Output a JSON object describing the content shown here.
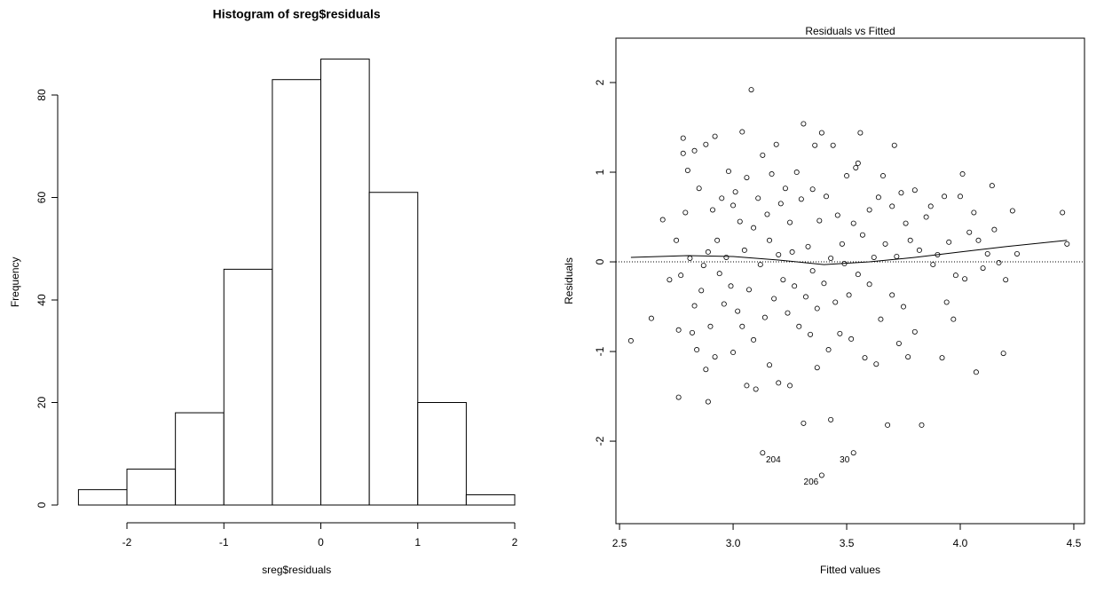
{
  "chart_data": [
    {
      "type": "histogram",
      "title": "Histogram of sreg$residuals",
      "xlabel": "sreg$residuals",
      "ylabel": "Frequency",
      "bins": [
        -2.5,
        -2,
        -1.5,
        -1,
        -0.5,
        0,
        0.5,
        1,
        1.5,
        2
      ],
      "values": [
        3,
        7,
        18,
        46,
        83,
        87,
        61,
        20,
        2
      ],
      "color": "#ffffff",
      "xlim": [
        -2.5,
        2
      ],
      "xticks": [
        -2,
        -1,
        0,
        1,
        2
      ],
      "ylim": [
        0,
        87
      ],
      "yticks": [
        0,
        20,
        40,
        60,
        80
      ]
    },
    {
      "type": "scatter",
      "title": "Residuals vs Fitted",
      "xlabel": "Fitted values",
      "ylabel": "Residuals",
      "x": [
        2.55,
        2.64,
        2.69,
        2.72,
        2.75,
        2.76,
        2.76,
        2.77,
        2.78,
        2.78,
        2.79,
        2.8,
        2.81,
        2.82,
        2.83,
        2.83,
        2.84,
        2.85,
        2.86,
        2.87,
        2.88,
        2.88,
        2.89,
        2.89,
        2.9,
        2.91,
        2.92,
        2.92,
        2.93,
        2.94,
        2.95,
        2.96,
        2.97,
        2.98,
        2.99,
        3.0,
        3.0,
        3.01,
        3.02,
        3.03,
        3.04,
        3.04,
        3.05,
        3.06,
        3.06,
        3.07,
        3.08,
        3.09,
        3.09,
        3.1,
        3.11,
        3.12,
        3.13,
        3.14,
        3.15,
        3.16,
        3.16,
        3.17,
        3.18,
        3.19,
        3.2,
        3.2,
        3.21,
        3.22,
        3.23,
        3.24,
        3.25,
        3.25,
        3.26,
        3.27,
        3.28,
        3.29,
        3.3,
        3.31,
        3.31,
        3.32,
        3.33,
        3.34,
        3.35,
        3.35,
        3.36,
        3.37,
        3.37,
        3.38,
        3.39,
        3.4,
        3.41,
        3.42,
        3.43,
        3.43,
        3.44,
        3.45,
        3.46,
        3.47,
        3.48,
        3.49,
        3.5,
        3.51,
        3.52,
        3.53,
        3.54,
        3.55,
        3.55,
        3.56,
        3.57,
        3.58,
        3.6,
        3.6,
        3.62,
        3.63,
        3.64,
        3.65,
        3.66,
        3.67,
        3.68,
        3.7,
        3.7,
        3.71,
        3.72,
        3.73,
        3.74,
        3.75,
        3.76,
        3.77,
        3.78,
        3.8,
        3.8,
        3.82,
        3.83,
        3.85,
        3.87,
        3.88,
        3.9,
        3.92,
        3.93,
        3.94,
        3.95,
        3.97,
        3.98,
        4.0,
        4.01,
        4.02,
        4.04,
        4.06,
        4.07,
        4.08,
        4.1,
        4.12,
        4.14,
        4.15,
        4.17,
        4.19,
        4.2,
        4.23,
        4.25,
        4.45,
        4.47
      ],
      "values": [
        -0.88,
        -0.63,
        0.47,
        -0.2,
        0.24,
        -0.76,
        -1.51,
        -0.15,
        1.38,
        1.21,
        0.55,
        1.02,
        0.04,
        -0.79,
        1.24,
        -0.49,
        -0.98,
        0.82,
        -0.32,
        -0.04,
        -1.2,
        1.31,
        -1.56,
        0.11,
        -0.72,
        0.58,
        -1.06,
        1.4,
        0.24,
        -0.13,
        0.71,
        -0.47,
        0.05,
        1.01,
        -0.27,
        0.63,
        -1.01,
        0.78,
        -0.55,
        0.45,
        -0.72,
        1.45,
        0.13,
        -1.38,
        0.94,
        -0.31,
        1.92,
        -0.87,
        0.38,
        -1.42,
        0.71,
        -0.03,
        1.19,
        -0.62,
        0.53,
        -1.15,
        0.24,
        0.98,
        -0.41,
        1.31,
        -1.35,
        0.08,
        0.65,
        -0.2,
        0.82,
        -0.57,
        -1.38,
        0.44,
        0.11,
        -0.27,
        1.0,
        -0.72,
        0.7,
        1.54,
        -1.8,
        -0.39,
        0.17,
        -0.81,
        0.81,
        -0.1,
        1.3,
        -0.52,
        -1.18,
        0.46,
        1.44,
        -0.24,
        0.73,
        -0.98,
        -1.76,
        0.04,
        1.3,
        -0.45,
        0.52,
        -0.8,
        0.2,
        -0.02,
        0.96,
        -0.37,
        -0.86,
        0.43,
        1.05,
        1.1,
        -0.14,
        1.44,
        0.3,
        -1.07,
        0.58,
        -0.25,
        0.05,
        -1.14,
        0.72,
        -0.64,
        0.96,
        0.2,
        -1.82,
        0.62,
        -0.37,
        1.3,
        0.06,
        -0.91,
        0.77,
        -0.5,
        0.43,
        -1.06,
        0.24,
        0.8,
        -0.78,
        0.13,
        -1.82,
        0.5,
        0.62,
        -0.03,
        0.08,
        -1.07,
        0.73,
        -0.45,
        0.22,
        -0.64,
        -0.15,
        0.73,
        0.98,
        -0.19,
        0.33,
        0.55,
        -1.23,
        0.24,
        -0.07,
        0.09,
        0.85,
        0.36,
        -0.01,
        -1.02,
        -0.2,
        0.57,
        0.09,
        0.55,
        0.2
      ],
      "color": "#000000",
      "annotations": [
        {
          "text": "204",
          "x": 3.13,
          "y": -2.13
        },
        {
          "text": "30",
          "x": 3.53,
          "y": -2.13
        },
        {
          "text": "206",
          "x": 3.39,
          "y": -2.38
        }
      ],
      "smooth": {
        "color": "#ff0000",
        "x": [
          2.55,
          2.8,
          3.0,
          3.2,
          3.4,
          3.6,
          3.8,
          4.0,
          4.2,
          4.47
        ],
        "values": [
          0.05,
          0.07,
          0.06,
          0.02,
          -0.03,
          0.0,
          0.05,
          0.11,
          0.17,
          0.24
        ]
      },
      "hline": 0,
      "xlim": [
        2.484,
        4.547
      ],
      "xticks": [
        2.5,
        {
          "value": 3,
          "label": "3.0"
        },
        3.5,
        {
          "value": 4,
          "label": "4.0"
        },
        4.5
      ],
      "ylim": [
        -2.92,
        2.495
      ],
      "yticks": [
        -2,
        -1,
        0,
        1,
        2
      ]
    }
  ]
}
